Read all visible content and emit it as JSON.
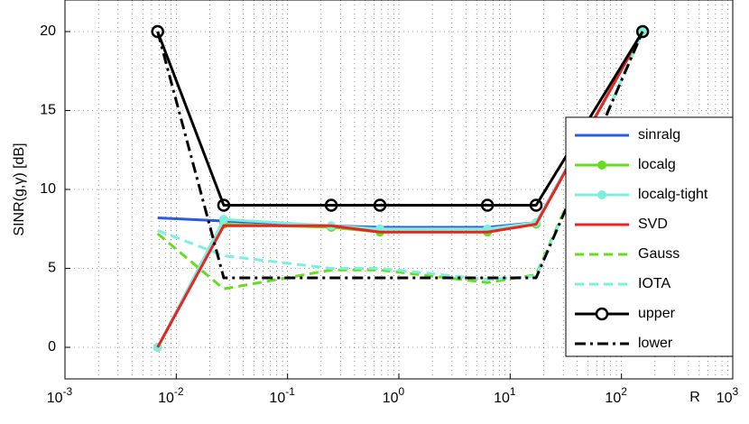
{
  "chart_data": {
    "type": "line",
    "xscale": "log",
    "grid": true,
    "legend": "right",
    "ylabel": "SINR(g,γ) [dB]",
    "xlabel": "R",
    "xlim": [
      0.001,
      1000
    ],
    "xticks": [
      {
        "value": 0.001,
        "label": "10^-3"
      },
      {
        "value": 0.01,
        "label": "10^-2"
      },
      {
        "value": 0.1,
        "label": "10^-1"
      },
      {
        "value": 1,
        "label": "10^0"
      },
      {
        "value": 10,
        "label": "10^1"
      },
      {
        "value": 100,
        "label": "10^2"
      },
      {
        "value": 1000,
        "label": "10^3"
      }
    ],
    "ylim": [
      -2,
      22
    ],
    "yticks": [
      0,
      5,
      10,
      15,
      20
    ],
    "x": [
      0.0068,
      0.0267,
      0.247,
      0.676,
      6.25,
      17.1,
      155
    ],
    "series": [
      {
        "name": "sinralg",
        "color": "#2b5ce0",
        "style": "solid",
        "marker": "none",
        "values": [
          8.2,
          8.0,
          7.7,
          7.6,
          7.6,
          7.9,
          20
        ]
      },
      {
        "name": "localg",
        "color": "#66dd22",
        "style": "solid",
        "marker": "dot",
        "values": [
          0,
          7.8,
          7.6,
          7.3,
          7.3,
          7.8,
          20
        ]
      },
      {
        "name": "localg-tight",
        "color": "#7eeedd",
        "style": "solid",
        "marker": "dot",
        "values": [
          0,
          8.1,
          7.7,
          7.5,
          7.5,
          7.9,
          20
        ]
      },
      {
        "name": "SVD",
        "color": "#ee2222",
        "style": "solid",
        "marker": "none",
        "values": [
          0,
          7.7,
          7.7,
          7.3,
          7.3,
          7.8,
          20
        ]
      },
      {
        "name": "Gauss",
        "color": "#66dd22",
        "style": "dashed",
        "marker": "none",
        "values": [
          7.2,
          3.7,
          4.9,
          4.9,
          4.1,
          4.6,
          20
        ]
      },
      {
        "name": "IOTA",
        "color": "#7eeedd",
        "style": "dashed",
        "marker": "none",
        "values": [
          7.4,
          5.8,
          5.0,
          5.0,
          4.3,
          4.5,
          20
        ]
      },
      {
        "name": "upper",
        "color": "#000000",
        "style": "solid",
        "marker": "circle",
        "values": [
          20,
          9,
          9,
          9,
          9,
          9,
          20
        ]
      },
      {
        "name": "lower",
        "color": "#000000",
        "style": "dashdot",
        "marker": "none",
        "values": [
          20,
          4.4,
          4.4,
          4.4,
          4.4,
          4.4,
          20
        ]
      }
    ]
  }
}
